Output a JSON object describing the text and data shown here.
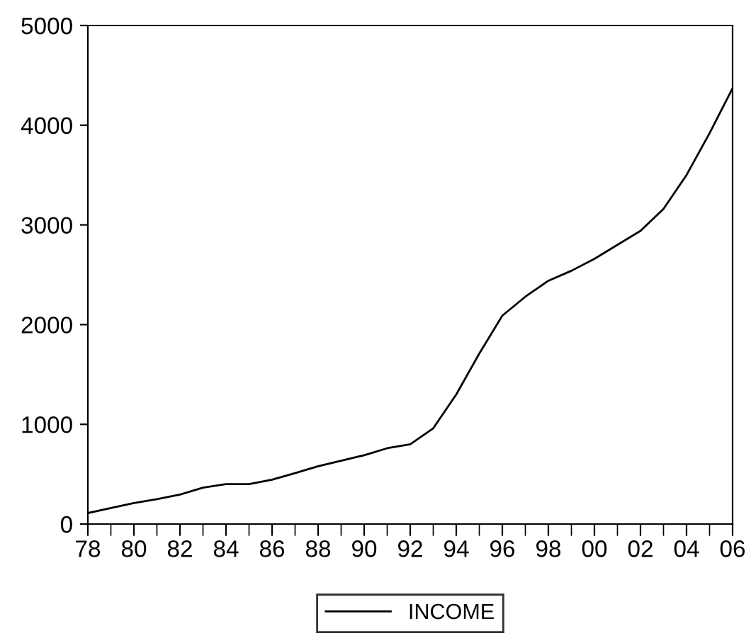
{
  "chart_data": {
    "type": "line",
    "x": [
      1978,
      1979,
      1980,
      1981,
      1982,
      1983,
      1984,
      1985,
      1986,
      1987,
      1988,
      1989,
      1990,
      1991,
      1992,
      1993,
      1994,
      1995,
      1996,
      1997,
      1998,
      1999,
      2000,
      2001,
      2002,
      2003,
      2004,
      2005,
      2006
    ],
    "series": [
      {
        "name": "INCOME",
        "color": "#000000",
        "values": [
          110,
          160,
          210,
          250,
          295,
          365,
          400,
          400,
          445,
          510,
          580,
          635,
          690,
          760,
          800,
          960,
          1300,
          1710,
          2090,
          2280,
          2440,
          2540,
          2660,
          2800,
          2940,
          3160,
          3500,
          3920,
          4370
        ]
      }
    ],
    "xlim": [
      1978,
      2006
    ],
    "xticks": [
      {
        "value": 1978,
        "label": "78"
      },
      {
        "value": 1980,
        "label": "80"
      },
      {
        "value": 1982,
        "label": "82"
      },
      {
        "value": 1984,
        "label": "84"
      },
      {
        "value": 1986,
        "label": "86"
      },
      {
        "value": 1988,
        "label": "88"
      },
      {
        "value": 1990,
        "label": "90"
      },
      {
        "value": 1992,
        "label": "92"
      },
      {
        "value": 1994,
        "label": "94"
      },
      {
        "value": 1996,
        "label": "96"
      },
      {
        "value": 1998,
        "label": "98"
      },
      {
        "value": 2000,
        "label": "00"
      },
      {
        "value": 2002,
        "label": "02"
      },
      {
        "value": 2004,
        "label": "04"
      },
      {
        "value": 2006,
        "label": "06"
      }
    ],
    "ylim": [
      0,
      5000
    ],
    "yticks": [
      0,
      1000,
      2000,
      3000,
      4000,
      5000
    ],
    "grid": false,
    "legend": "bottom",
    "marker": "none",
    "line_style": "solid"
  }
}
